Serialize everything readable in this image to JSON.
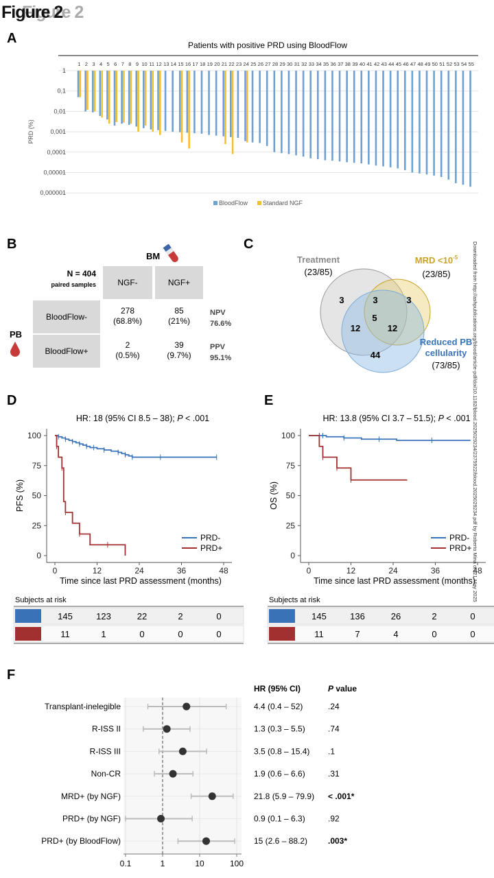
{
  "figure": {
    "title": "Figure 2"
  },
  "panels": {
    "a": "A",
    "b": "B",
    "c": "C",
    "d": "D",
    "e": "E",
    "f": "F"
  },
  "panelA": {
    "title": "Patients with positive PRD using BloodFlow",
    "ylabel": "PRD (%)",
    "yticks": [
      "1",
      "0,1",
      "0,01",
      "0,001",
      "0,0001",
      "0,00001",
      "0,000001"
    ],
    "legend": [
      "BloodFlow",
      "Standard NGF"
    ],
    "colors": {
      "bloodflow": "#6fa0d2",
      "ngf": "#f2c12e"
    }
  },
  "chart_data": [
    {
      "type": "bar",
      "title": "Patients with positive PRD using BloodFlow",
      "ylabel": "PRD (%)",
      "yscale": "log",
      "ylim": [
        1e-06,
        1
      ],
      "categories": [
        "1",
        "2",
        "3",
        "4",
        "5",
        "6",
        "7",
        "8",
        "9",
        "10",
        "11",
        "12",
        "13",
        "14",
        "15",
        "16",
        "17",
        "18",
        "19",
        "20",
        "21",
        "22",
        "23",
        "24",
        "25",
        "26",
        "27",
        "28",
        "29",
        "30",
        "31",
        "32",
        "33",
        "34",
        "35",
        "36",
        "37",
        "38",
        "39",
        "40",
        "41",
        "42",
        "43",
        "44",
        "45",
        "46",
        "47",
        "48",
        "49",
        "50",
        "51",
        "52",
        "53",
        "54",
        "55"
      ],
      "series": [
        {
          "name": "BloodFlow",
          "values": [
            0.05,
            0.01,
            0.009,
            0.006,
            0.004,
            0.002,
            0.0025,
            0.0022,
            0.0018,
            0.0015,
            0.0013,
            0.0012,
            0.0011,
            0.001,
            0.00095,
            0.0009,
            0.00085,
            0.0008,
            0.0007,
            0.00065,
            0.0006,
            0.00055,
            0.0005,
            0.00035,
            0.0003,
            0.00028,
            0.0002,
            0.0001,
            9e-05,
            8e-05,
            7e-05,
            6e-05,
            5e-05,
            4.5e-05,
            4e-05,
            3.8e-05,
            3.5e-05,
            3.2e-05,
            3e-05,
            2.8e-05,
            2.5e-05,
            2.2e-05,
            2e-05,
            1.8e-05,
            1.6e-05,
            1.3e-05,
            1e-05,
            9e-06,
            8e-06,
            7e-06,
            6e-06,
            4.5e-06,
            3e-06,
            2.5e-06,
            2e-06
          ]
        },
        {
          "name": "Standard NGF",
          "values": [
            0.05,
            0.012,
            0.01,
            0.005,
            0.0025,
            0.003,
            0.0028,
            0.0025,
            0.001,
            0.002,
            0.001,
            0.0007,
            null,
            null,
            0.0003,
            0.00015,
            null,
            null,
            null,
            null,
            0.00025,
            8e-05,
            null,
            0.0003,
            null,
            null,
            null,
            null,
            null,
            null,
            null,
            null,
            null,
            null,
            null,
            null,
            null,
            null,
            null,
            null,
            null,
            null,
            null,
            null,
            null,
            null,
            null,
            null,
            null,
            null,
            null,
            null,
            null,
            null,
            null
          ]
        }
      ]
    },
    {
      "type": "table",
      "title": "BM",
      "corner": "N = 404",
      "corner_sub": "paired samples",
      "row_group": "PB",
      "columns": [
        "NGF-",
        "NGF+"
      ],
      "rows": [
        {
          "label": "BloodFlow-",
          "cells": [
            [
              "278",
              "(68.8%)"
            ],
            [
              "85",
              "(21%)"
            ]
          ],
          "stat": "NPV",
          "stat_val": "76.6%"
        },
        {
          "label": "BloodFlow+",
          "cells": [
            [
              "2",
              "(0.5%)"
            ],
            [
              "39",
              "(9.7%)"
            ]
          ],
          "stat": "PPV",
          "stat_val": "95.1%"
        }
      ]
    },
    {
      "type": "venn",
      "sets": [
        {
          "label": "Treatment",
          "count": "(23/85)",
          "color": "#888888"
        },
        {
          "label": "MRD <10",
          "sup": "-5",
          "count": "(23/85)",
          "color": "#c8a42a"
        },
        {
          "label1": "Reduced PB",
          "label2": "cellularity",
          "count": "(73/85)",
          "color": "#3b74b5"
        }
      ],
      "regions": {
        "t_only": "3",
        "m_only": "3",
        "r_only": "44",
        "tm": "3",
        "tr": "12",
        "mr": "12",
        "tmr": "5"
      }
    },
    {
      "type": "line",
      "title": "HR: 18 (95% CI 8.5 – 38); ",
      "title_p": "P",
      "title_tail": " < .001",
      "ylabel": "PFS (%)",
      "xlabel": "Time since last PRD assessment (months)",
      "xticks": [
        "0",
        "12",
        "24",
        "36",
        "48"
      ],
      "yticks": [
        "0",
        "25",
        "50",
        "75",
        "100"
      ],
      "xlim": [
        0,
        48
      ],
      "ylim": [
        0,
        100
      ],
      "series": [
        {
          "name": "PRD-",
          "color": "#3a72b8",
          "points": [
            [
              0,
              100
            ],
            [
              1,
              99
            ],
            [
              2,
              98
            ],
            [
              3,
              97
            ],
            [
              4,
              96
            ],
            [
              5,
              95
            ],
            [
              6,
              94
            ],
            [
              7,
              93
            ],
            [
              8,
              92
            ],
            [
              9,
              91
            ],
            [
              10,
              90
            ],
            [
              11,
              90
            ],
            [
              12,
              89
            ],
            [
              14,
              88
            ],
            [
              16,
              87
            ],
            [
              18,
              86
            ],
            [
              19,
              85
            ],
            [
              20,
              84
            ],
            [
              21,
              83
            ],
            [
              22,
              82
            ],
            [
              25,
              82
            ],
            [
              30,
              82
            ],
            [
              40,
              82
            ],
            [
              46,
              82
            ]
          ]
        },
        {
          "name": "PRD+",
          "color": "#a33030",
          "points": [
            [
              0,
              100
            ],
            [
              0.5,
              91
            ],
            [
              1,
              82
            ],
            [
              2,
              73
            ],
            [
              2.5,
              45
            ],
            [
              3,
              36
            ],
            [
              5,
              27
            ],
            [
              7,
              18
            ],
            [
              10,
              9
            ],
            [
              15,
              9
            ],
            [
              20,
              9
            ],
            [
              20,
              0
            ]
          ]
        }
      ],
      "risk_table": {
        "title": "Subjects at risk",
        "rows": [
          [
            "145",
            "123",
            "22",
            "2",
            "0"
          ],
          [
            "11",
            "1",
            "0",
            "0",
            "0"
          ]
        ]
      }
    },
    {
      "type": "line",
      "title": "HR: 13.8 (95% CI 3.7 – 51.5); ",
      "title_p": "P",
      "title_tail": " < .001",
      "ylabel": "OS (%)",
      "xlabel": "Time since last PRD assessment (months)",
      "xticks": [
        "0",
        "12",
        "24",
        "36",
        "48"
      ],
      "yticks": [
        "0",
        "25",
        "50",
        "75",
        "100"
      ],
      "xlim": [
        0,
        48
      ],
      "ylim": [
        0,
        100
      ],
      "series": [
        {
          "name": "PRD-",
          "color": "#3a72b8",
          "points": [
            [
              0,
              100
            ],
            [
              4,
              100
            ],
            [
              5,
              99
            ],
            [
              10,
              98
            ],
            [
              15,
              97
            ],
            [
              20,
              97
            ],
            [
              25,
              96
            ],
            [
              35,
              96
            ],
            [
              46,
              96
            ]
          ]
        },
        {
          "name": "PRD+",
          "color": "#a33030",
          "points": [
            [
              0,
              100
            ],
            [
              3,
              100
            ],
            [
              3,
              91
            ],
            [
              4,
              82
            ],
            [
              8,
              82
            ],
            [
              8,
              73
            ],
            [
              12,
              73
            ],
            [
              12,
              63
            ],
            [
              28,
              63
            ]
          ]
        }
      ],
      "risk_table": {
        "title": "Subjects at risk",
        "rows": [
          [
            "145",
            "136",
            "26",
            "2",
            "0"
          ],
          [
            "11",
            "7",
            "4",
            "0",
            "0"
          ]
        ]
      }
    },
    {
      "type": "scatter",
      "subtype": "forest",
      "xscale": "log",
      "xticks": [
        "0.1",
        "1",
        "10",
        "100"
      ],
      "header_hr": "HR (95% CI)",
      "header_p": "P value",
      "rows": [
        {
          "label": "Transplant-inelegible",
          "hr": 4.4,
          "lo": 0.4,
          "hi": 52,
          "text": "4.4 (0.4 – 52)",
          "p": ".24"
        },
        {
          "label": "R-ISS II",
          "hr": 1.3,
          "lo": 0.3,
          "hi": 5.5,
          "text": "1.3 (0.3 – 5.5)",
          "p": ".74"
        },
        {
          "label": "R-ISS III",
          "hr": 3.5,
          "lo": 0.8,
          "hi": 15.4,
          "text": "3.5 (0.8 – 15.4)",
          "p": ".1"
        },
        {
          "label": "Non-CR",
          "hr": 1.9,
          "lo": 0.6,
          "hi": 6.6,
          "text": "1.9 (0.6 – 6.6)",
          "p": ".31"
        },
        {
          "label": "MRD+ (by NGF)",
          "hr": 21.8,
          "lo": 5.9,
          "hi": 79.9,
          "text": "21.8 (5.9 – 79.9)",
          "p": "< .001*",
          "bold": true
        },
        {
          "label": "PRD+ (by NGF)",
          "hr": 0.9,
          "lo": 0.1,
          "hi": 6.3,
          "text": "0.9 (0.1 – 6.3)",
          "p": ".92"
        },
        {
          "label": "PRD+ (by BloodFlow)",
          "hr": 15,
          "lo": 2.6,
          "hi": 88.2,
          "text": "15 (2.6 – 88.2)",
          "p": ".003*",
          "bold": true
        }
      ]
    }
  ],
  "sidebar": {
    "text": "Downloaded from http://ashpublications.org/blood/article-pdf/doi/10.1182/blood.2025029234/2375922/blood.2025029234.pdf by Roberto Mina on 21 May 2025"
  }
}
